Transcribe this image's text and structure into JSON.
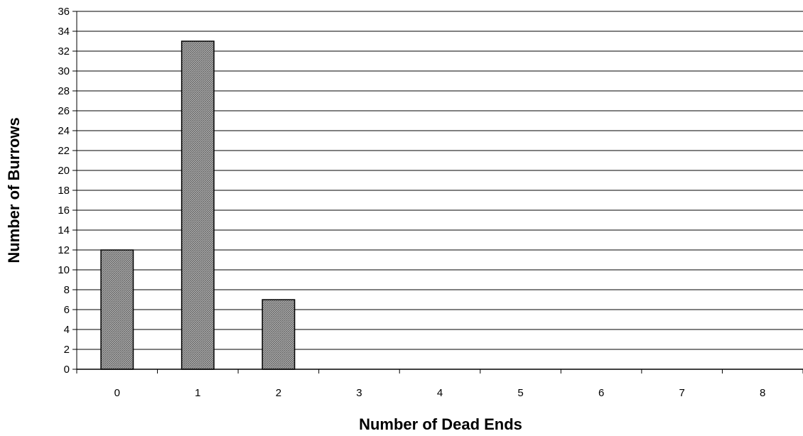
{
  "chart_data": {
    "type": "bar",
    "title": "",
    "xlabel": "Number of Dead Ends",
    "ylabel": "Number of Burrows",
    "categories": [
      "0",
      "1",
      "2",
      "3",
      "4",
      "5",
      "6",
      "7",
      "8"
    ],
    "values": [
      12,
      33,
      7,
      0,
      0,
      0,
      0,
      0,
      0
    ],
    "ylim": [
      0,
      36
    ],
    "ytick_step": 2,
    "grid": "horizontal",
    "legend": "none",
    "bar_fill": "#b0b0b0",
    "bar_hatch": "#5a5a5a",
    "bar_stroke": "#000000",
    "grid_color": "#000000"
  }
}
